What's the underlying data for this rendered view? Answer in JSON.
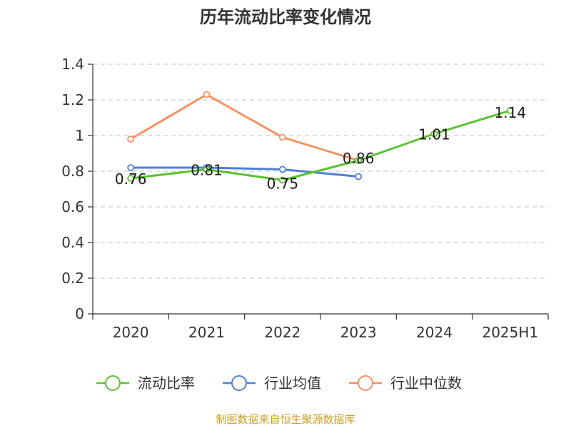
{
  "chart_data": {
    "type": "line",
    "title": "历年流动比率变化情况",
    "categories": [
      "2020",
      "2021",
      "2022",
      "2023",
      "2024",
      "2025H1"
    ],
    "ylim": [
      0,
      1.4
    ],
    "yticks": [
      "0",
      "0.2",
      "0.4",
      "0.6",
      "0.8",
      "1",
      "1.2",
      "1.4"
    ],
    "grid": true,
    "legend_position": "bottom",
    "series": [
      {
        "name": "流动比率",
        "color": "#5cc230",
        "values": [
          0.76,
          0.81,
          0.75,
          0.86,
          1.01,
          1.14
        ],
        "labels": [
          "0.76",
          "0.81",
          "0.75",
          "0.86",
          "1.01",
          "1.14"
        ]
      },
      {
        "name": "行业均值",
        "color": "#4f7fd6",
        "values": [
          0.82,
          0.82,
          0.81,
          0.77,
          null,
          null
        ]
      },
      {
        "name": "行业中位数",
        "color": "#f39160",
        "values": [
          0.98,
          1.23,
          0.99,
          0.86,
          null,
          null
        ]
      }
    ]
  },
  "source": "制图数据来自恒生聚源数据库"
}
